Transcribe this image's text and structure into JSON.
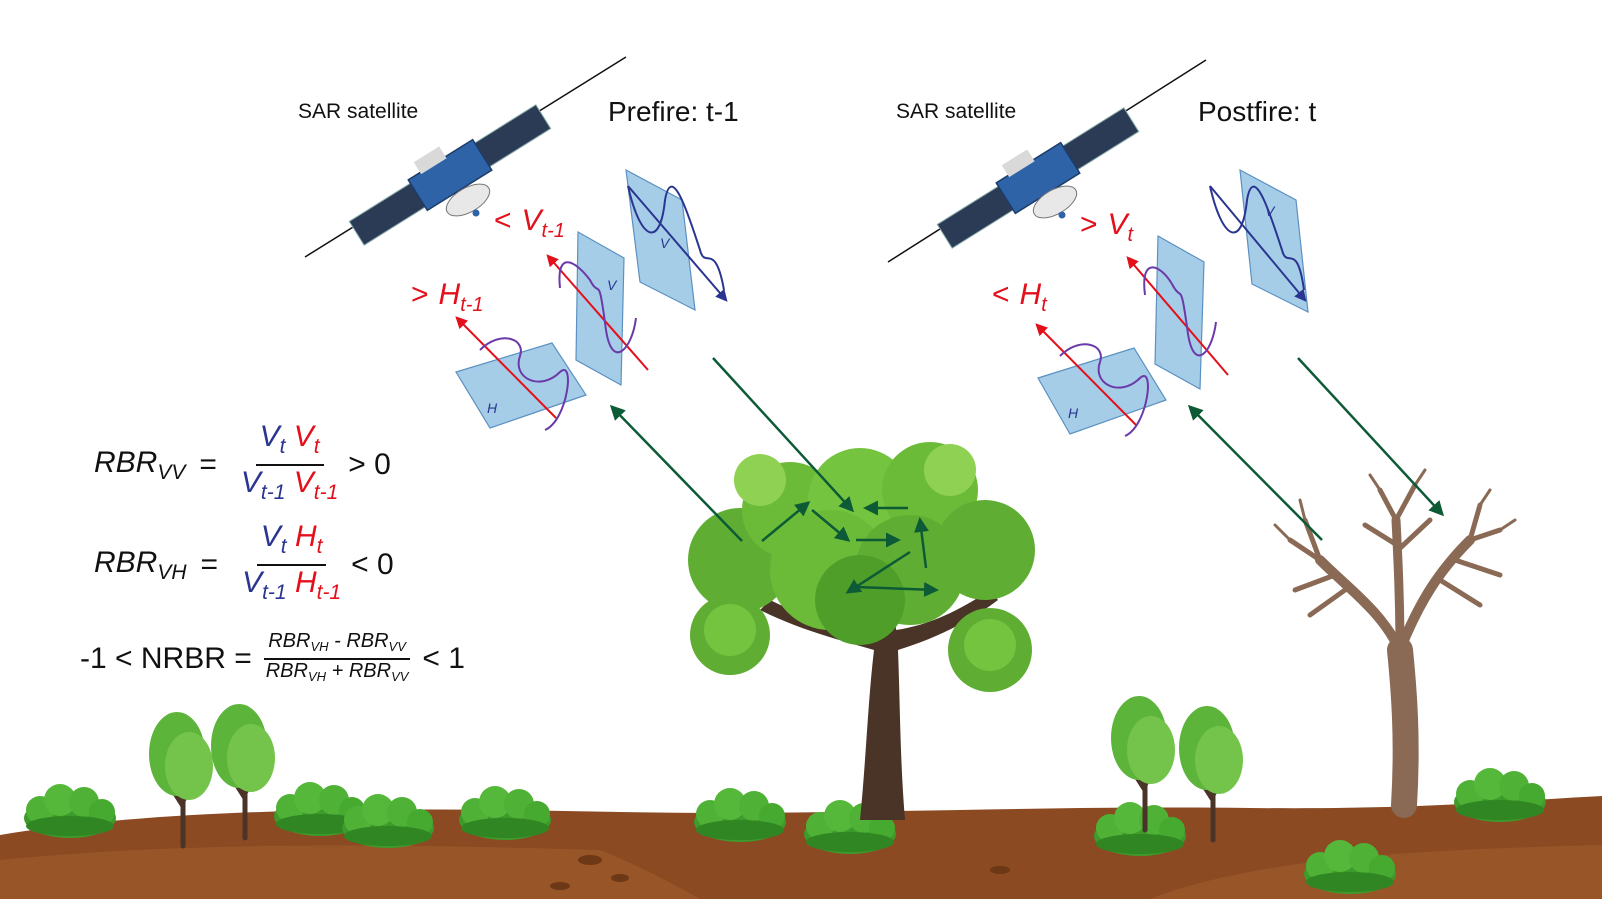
{
  "labels": {
    "sat_left": "SAR satellite",
    "sat_right": "SAR satellite",
    "phase_left": "Prefire: t-1",
    "phase_right": "Postfire: t"
  },
  "polarizations": {
    "left_v": {
      "cmp": "<",
      "base": "V",
      "sub": "t-1"
    },
    "left_h": {
      "cmp": ">",
      "base": "H",
      "sub": "t-1"
    },
    "right_v": {
      "cmp": ">",
      "base": "V",
      "sub": "t"
    },
    "right_h": {
      "cmp": "<",
      "base": "H",
      "sub": "t"
    },
    "plane_v": "V",
    "plane_h": "H"
  },
  "equations": {
    "rbr_vv": {
      "lhs": "RBR",
      "lhs_sub": "VV",
      "eq": "=",
      "num_a": "V",
      "num_a_sub": "t",
      "num_b": "V",
      "num_b_sub": "t",
      "den_a": "V",
      "den_a_sub": "t-1",
      "den_b": "V",
      "den_b_sub": "t-1",
      "rhs": "> 0"
    },
    "rbr_vh": {
      "lhs": "RBR",
      "lhs_sub": "VH",
      "eq": "=",
      "num_a": "V",
      "num_a_sub": "t",
      "num_b": "H",
      "num_b_sub": "t",
      "den_a": "V",
      "den_a_sub": "t-1",
      "den_b": "H",
      "den_b_sub": "t-1",
      "rhs": "< 0"
    },
    "nrbr": {
      "lhs": "-1 < NRBR  =",
      "num_a": "RBR",
      "num_a_sub": "VH",
      "num_op": " - ",
      "num_b": "RBR",
      "num_b_sub": "VV",
      "den_a": "RBR",
      "den_a_sub": "VH",
      "den_op": " + ",
      "den_b": "RBR",
      "den_b_sub": "VV",
      "rhs": "< 1"
    }
  },
  "colors": {
    "v_blue": "#2a3591",
    "h_red": "#e3101b",
    "arrow_green": "#0d5a36",
    "soil": "#8b4a22",
    "foliage": "#6bb22f",
    "trunk": "#4a3427",
    "dead_tree": "#8a6a55",
    "plane": "#a6cde8"
  }
}
